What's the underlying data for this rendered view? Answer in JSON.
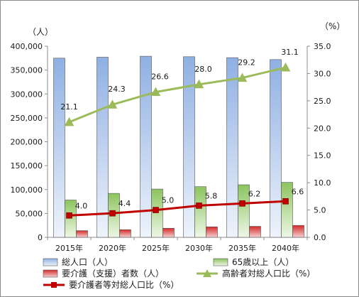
{
  "chart_data": {
    "type": "bar",
    "categories": [
      "2015年",
      "2020年",
      "2025年",
      "2030年",
      "2035年",
      "2040年"
    ],
    "left_axis": {
      "unit_label": "（人）",
      "ylim": [
        0,
        400000
      ],
      "ticks": [
        "0",
        "50,000",
        "100,000",
        "150,000",
        "200,000",
        "250,000",
        "300,000",
        "350,000",
        "400,000"
      ]
    },
    "right_axis": {
      "unit_label": "（%）",
      "ylim": [
        0,
        35
      ],
      "ticks": [
        "0.0",
        "5.0",
        "10.0",
        "15.0",
        "20.0",
        "25.0",
        "30.0",
        "35.0"
      ]
    },
    "series": [
      {
        "name": "総人口（人）",
        "kind": "bar",
        "axis": "left",
        "color": "#a8c0e8",
        "values": [
          375000,
          377000,
          379000,
          378000,
          376000,
          372000
        ]
      },
      {
        "name": "65歳以上（人）",
        "kind": "bar",
        "axis": "left",
        "color": "#9ccc6a",
        "values": [
          78000,
          92000,
          101000,
          106000,
          110000,
          115000
        ]
      },
      {
        "name": "要介護（支援）者数（人）",
        "kind": "bar",
        "axis": "left",
        "color": "#d92b2b",
        "values": [
          14000,
          16000,
          19000,
          22000,
          23000,
          25000
        ]
      },
      {
        "name": "高齢者対総人口比（%）",
        "kind": "line",
        "axis": "right",
        "color": "#9bbb59",
        "marker": "triangle",
        "values": [
          21.1,
          24.3,
          26.6,
          28.0,
          29.2,
          31.1
        ],
        "labels": [
          "21.1",
          "24.3",
          "26.6",
          "28.0",
          "29.2",
          "31.1"
        ]
      },
      {
        "name": "要介護者等対総人口比（%）",
        "kind": "line",
        "axis": "right",
        "color": "#c00000",
        "marker": "square",
        "values": [
          4.0,
          4.4,
          5.0,
          5.8,
          6.2,
          6.6
        ],
        "labels": [
          "4.0",
          "4.4",
          "5.0",
          "5.8",
          "6.2",
          "6.6"
        ]
      }
    ],
    "grid": false,
    "legend_position": "bottom"
  }
}
